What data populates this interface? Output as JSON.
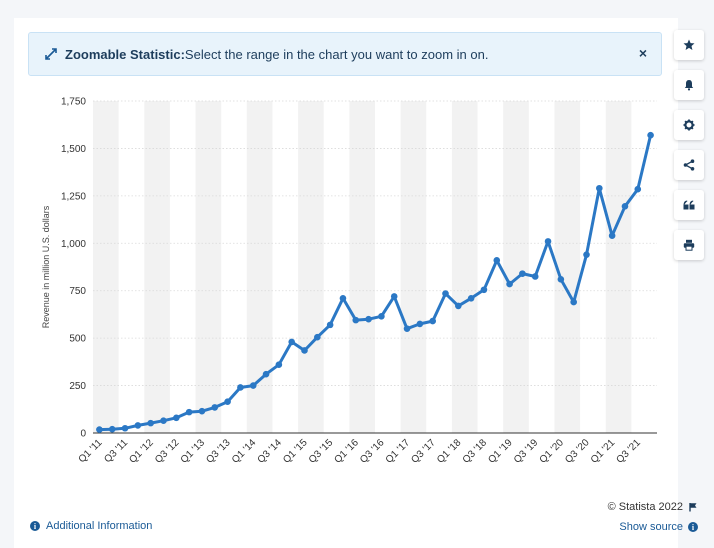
{
  "banner": {
    "title": "Zoomable Statistic:",
    "message": "Select the range in the chart you want to zoom in on.",
    "close_label": "×"
  },
  "sidebar": {
    "icons": [
      "star-icon",
      "bell-icon",
      "gear-icon",
      "share-icon",
      "quote-icon",
      "print-icon"
    ]
  },
  "footer": {
    "additional_info": "Additional Information",
    "copyright": "© Statista 2022",
    "show_source": "Show source"
  },
  "colors": {
    "line": "#2b78c5",
    "band": "#f2f2f2",
    "grid": "#d9d9d9",
    "link": "#1a5a96"
  },
  "chart_data": {
    "type": "line",
    "ylabel": "Revenue in million U.S. dollars",
    "ylim": [
      0,
      1750
    ],
    "yticks": [
      0,
      250,
      500,
      750,
      1000,
      1250,
      1500,
      1750
    ],
    "ytick_labels": [
      "0",
      "250",
      "500",
      "750",
      "1,000",
      "1,250",
      "1,500",
      "1,750"
    ],
    "categories": [
      "Q1 '11",
      "Q2 '11",
      "Q3 '11",
      "Q4 '11",
      "Q1 '12",
      "Q2 '12",
      "Q3 '12",
      "Q4 '12",
      "Q1 '13",
      "Q2 '13",
      "Q3 '13",
      "Q4 '13",
      "Q1 '14",
      "Q2 '14",
      "Q3 '14",
      "Q4 '14",
      "Q1 '15",
      "Q2 '15",
      "Q3 '15",
      "Q4 '15",
      "Q1 '16",
      "Q2 '16",
      "Q3 '16",
      "Q4 '16",
      "Q1 '17",
      "Q2 '17",
      "Q3 '17",
      "Q4 '17",
      "Q1 '18",
      "Q2 '18",
      "Q3 '18",
      "Q4 '18",
      "Q1 '19",
      "Q2 '19",
      "Q3 '19",
      "Q4 '19",
      "Q1 '20",
      "Q2 '20",
      "Q3 '20",
      "Q4 '20",
      "Q1 '21",
      "Q2 '21",
      "Q3 '21",
      "Q4 '21"
    ],
    "xtick_labels": [
      "Q1 '11",
      "Q3 '11",
      "Q1 '12",
      "Q3 '12",
      "Q1 '13",
      "Q3 '13",
      "Q1 '14",
      "Q3 '14",
      "Q1 '15",
      "Q3 '15",
      "Q1 '16",
      "Q3 '16",
      "Q1 '17",
      "Q3 '17",
      "Q1 '18",
      "Q3 '18",
      "Q1 '19",
      "Q3 '19",
      "Q1 '20",
      "Q3 '20",
      "Q1 '21",
      "Q3 '21"
    ],
    "series": [
      {
        "values": [
          18,
          20,
          25,
          40,
          52,
          65,
          80,
          110,
          115,
          135,
          165,
          240,
          250,
          310,
          360,
          480,
          435,
          505,
          570,
          710,
          595,
          600,
          615,
          720,
          550,
          575,
          590,
          735,
          670,
          710,
          755,
          910,
          785,
          840,
          825,
          1010,
          810,
          690,
          940,
          1290,
          1040,
          1195,
          1285,
          1570
        ]
      }
    ],
    "grid": true,
    "alternating_bands": true
  }
}
